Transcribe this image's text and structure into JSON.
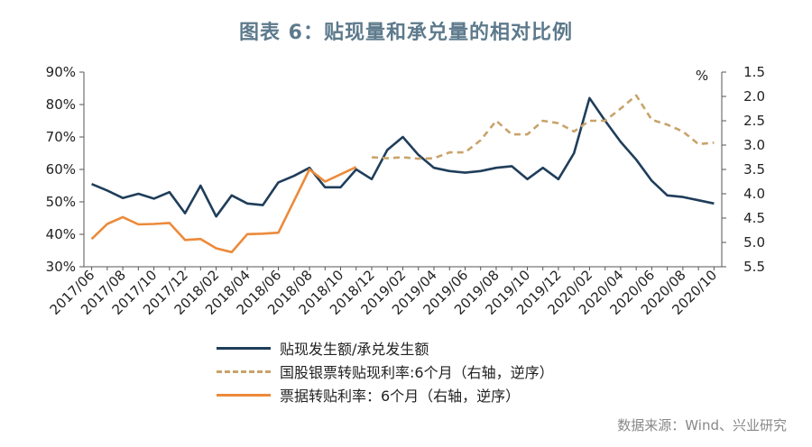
{
  "title": "图表 6：贴现量和承兑量的相对比例",
  "source": "数据来源：Wind、兴业研究",
  "colors": {
    "series1": "#1f3e5a",
    "series2": "#c9a36b",
    "series3": "#ec8a3a"
  },
  "chart_data": {
    "type": "line",
    "categories": [
      "2017/06",
      "2017/07",
      "2017/08",
      "2017/09",
      "2017/10",
      "2017/11",
      "2017/12",
      "2018/01",
      "2018/02",
      "2018/03",
      "2018/04",
      "2018/05",
      "2018/06",
      "2018/07",
      "2018/08",
      "2018/09",
      "2018/10",
      "2018/11",
      "2018/12",
      "2019/01",
      "2019/02",
      "2019/03",
      "2019/04",
      "2019/05",
      "2019/06",
      "2019/07",
      "2019/08",
      "2019/09",
      "2019/10",
      "2019/11",
      "2019/12",
      "2020/01",
      "2020/02",
      "2020/03",
      "2020/04",
      "2020/05",
      "2020/06",
      "2020/07",
      "2020/08",
      "2020/09",
      "2020/10"
    ],
    "xtick_labels": [
      "2017/06",
      "2017/08",
      "2017/10",
      "2017/12",
      "2018/02",
      "2018/04",
      "2018/06",
      "2018/08",
      "2018/10",
      "2018/12",
      "2019/02",
      "2019/04",
      "2019/06",
      "2019/08",
      "2019/10",
      "2019/12",
      "2020/02",
      "2020/04",
      "2020/06",
      "2020/08",
      "2020/10"
    ],
    "left_axis": {
      "ylim": [
        30,
        90
      ],
      "ticks": [
        "30%",
        "40%",
        "50%",
        "60%",
        "70%",
        "80%",
        "90%"
      ]
    },
    "right_axis": {
      "unit_label": "%",
      "ylim": [
        1.5,
        5.5
      ],
      "reversed": true,
      "ticks": [
        "1.5",
        "2.0",
        "2.5",
        "3.0",
        "3.5",
        "4.0",
        "4.5",
        "5.0",
        "5.5"
      ]
    },
    "series": [
      {
        "name": "贴现发生额/承兑发生额",
        "axis": "left",
        "style": "solid",
        "values": [
          55.5,
          53.5,
          51.2,
          52.5,
          51.0,
          53.0,
          46.5,
          55.0,
          45.5,
          52.0,
          49.5,
          49.0,
          56.0,
          58.0,
          60.5,
          54.5,
          54.5,
          60.0,
          57.0,
          66.0,
          70.0,
          64.5,
          60.5,
          59.5,
          59.0,
          59.5,
          60.5,
          61.0,
          57.0,
          60.5,
          57.0,
          65.0,
          82.0,
          75.0,
          68.5,
          63.0,
          56.5,
          52.0,
          51.5,
          50.5,
          49.5
        ]
      },
      {
        "name": "国股银票转贴现利率:6个月（右轴，逆序）",
        "axis": "right",
        "style": "dashed",
        "values": [
          null,
          null,
          null,
          null,
          null,
          null,
          null,
          null,
          null,
          null,
          null,
          null,
          null,
          null,
          null,
          null,
          null,
          null,
          3.25,
          3.27,
          3.25,
          3.28,
          3.27,
          3.15,
          3.15,
          2.9,
          2.5,
          2.78,
          2.78,
          2.5,
          2.55,
          2.72,
          2.5,
          2.5,
          2.25,
          1.98,
          2.48,
          2.58,
          2.72,
          2.98,
          2.95
        ]
      },
      {
        "name": "票据转贴利率：6个月（右轴，逆序）",
        "axis": "right",
        "style": "solid",
        "values": [
          4.93,
          4.62,
          4.48,
          4.63,
          4.62,
          4.6,
          4.95,
          4.93,
          5.12,
          5.2,
          4.83,
          4.82,
          4.8,
          4.15,
          3.5,
          3.75,
          3.6,
          3.45,
          null,
          null,
          null,
          null,
          null,
          null,
          null,
          null,
          null,
          null,
          null,
          null,
          null,
          null,
          null,
          null,
          null,
          null,
          null,
          null,
          null,
          null,
          null
        ]
      }
    ]
  }
}
